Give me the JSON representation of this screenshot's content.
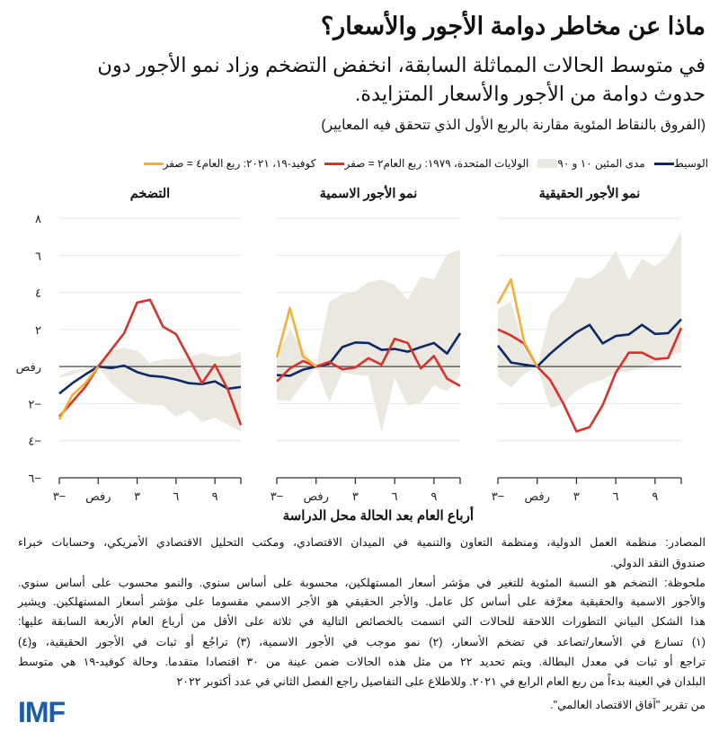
{
  "header": {
    "title": "ماذا عن مخاطر دوامة الأجور والأسعار؟",
    "subtitle_lines": [
      "في متوسط الحالات المماثلة السابقة، انخفض التضخم وزاد نمو الأجور دون",
      "حدوث دوامة من الأجور والأسعار المتزايدة."
    ],
    "units": "(الفروق بالنقاط المئوية مقارنة بالربع الأول الذي تتحقق فيه المعايير)"
  },
  "legend": [
    {
      "label": "كوفيد-١٩، ٢٠٢١: ربع العام٤ = صفر",
      "kind": "line",
      "color": "#f2b134"
    },
    {
      "label": "الولايات المتحدة، ١٩٧٩: ربع العام٢ = صفر",
      "kind": "line",
      "color": "#d8322b"
    },
    {
      "label": "مدى المئين ١٠ و ٩٠",
      "kind": "band",
      "color": "#ebe8df"
    },
    {
      "label": "الوسيط",
      "kind": "line",
      "color": "#0c2a6a"
    }
  ],
  "chart_data": {
    "type": "line",
    "x": [
      -3,
      -2,
      -1,
      0,
      1,
      2,
      3,
      4,
      5,
      6,
      7,
      8,
      9,
      10,
      11
    ],
    "xlabel": "أرباع العام بعد الحالة محل الدراسة",
    "xticks": [
      -3,
      0,
      3,
      6,
      9
    ],
    "xtick_labels": [
      "٣−",
      "صفر",
      "٣",
      "٦",
      "٩"
    ],
    "ylim": [
      -6,
      8
    ],
    "yticks": [
      8,
      6,
      4,
      2,
      0,
      -2,
      -4,
      -6
    ],
    "ytick_labels": [
      "٨",
      "٦",
      "٤",
      "٢",
      "صفر",
      "٢−",
      "٤−",
      "٦−"
    ],
    "grid": true,
    "colors": {
      "median": "#0c2a6a",
      "us1979": "#d8322b",
      "covid": "#f2b134",
      "band": "#ebe8df",
      "zero": "#444444",
      "grid": "#e6e6e6"
    },
    "panels": [
      {
        "title": "التضخم",
        "band_upper": [
          -0.5,
          -0.2,
          -0.1,
          0,
          0.9,
          1.0,
          0.85,
          0.2,
          0.4,
          0.4,
          0.5,
          0.75,
          0.55,
          0.55,
          0.8
        ],
        "band_lower": [
          -0.6,
          -0.45,
          -0.2,
          0,
          -0.9,
          -1.5,
          -1.95,
          -2.05,
          -2.1,
          -2.7,
          -2.35,
          -3.0,
          -2.75,
          -3.15,
          -3.5
        ],
        "series": [
          {
            "name": "الوسيط",
            "key": "median",
            "values": [
              -1.46,
              -0.9,
              -0.43,
              0,
              -0.08,
              0.05,
              -0.3,
              -0.5,
              -0.56,
              -0.7,
              -0.9,
              -0.95,
              -0.8,
              -1.2,
              -1.1
            ]
          },
          {
            "name": "الولايات المتحدة، ١٩٧٩: ربع العام٢ = صفر",
            "key": "us1979",
            "values": [
              -2.7,
              -1.9,
              -1.1,
              0,
              0.9,
              1.8,
              3.45,
              3.6,
              2.15,
              1.75,
              0.45,
              -0.9,
              0.1,
              -1.25,
              -3.15
            ]
          },
          {
            "name": "كوفيد-١٩، ٢٠٢١: ربع العام٤ = صفر",
            "key": "covid",
            "values": [
              -2.85,
              -1.55,
              -0.9,
              0
            ]
          }
        ]
      },
      {
        "title": "نمو الأجور الاسمية",
        "band_upper": [
          0.55,
          2.0,
          0.9,
          0,
          3.5,
          3.9,
          4.05,
          4.55,
          4.7,
          4.4,
          3.6,
          4.85,
          4.7,
          6.05,
          6.3
        ],
        "band_lower": [
          -1.8,
          -1.85,
          -0.95,
          0,
          -1.95,
          -0.3,
          -0.45,
          -0.5,
          -3.55,
          -0.6,
          -2.1,
          -1.95,
          -1.0,
          -1.35,
          -0.45
        ],
        "series": [
          {
            "name": "الوسيط",
            "key": "median",
            "values": [
              -0.46,
              -0.5,
              -0.17,
              0,
              0.15,
              1.05,
              1.3,
              1.27,
              0.9,
              0.95,
              0.8,
              1.05,
              1.27,
              0.7,
              1.8
            ]
          },
          {
            "name": "الولايات المتحدة، ١٩٧٩: ربع العام٢ = صفر",
            "key": "us1979",
            "values": [
              -0.8,
              -0.1,
              0.3,
              0,
              0.25,
              -0.15,
              -0.05,
              0.45,
              0.1,
              1.5,
              1.27,
              -0.1,
              0.57,
              -0.65,
              -1.05
            ]
          },
          {
            "name": "كوفيد-١٩، ٢٠٢١: ربع العام٤ = صفر",
            "key": "covid",
            "values": [
              0.5,
              3.15,
              0.55,
              0
            ]
          }
        ]
      },
      {
        "title": "نمو الأجور الحقيقية",
        "band_upper": [
          3.1,
          3.5,
          0.95,
          0,
          2.85,
          3.5,
          4.8,
          4.75,
          5.2,
          6.25,
          4.65,
          5.8,
          5.4,
          6.0,
          7.3
        ],
        "band_lower": [
          -0.57,
          -1.13,
          -0.4,
          0,
          -2.25,
          -2.0,
          -1.3,
          -0.9,
          -0.73,
          -0.33,
          -0.25,
          -0.1,
          0.22,
          0.54,
          0.78
        ],
        "series": [
          {
            "name": "الوسيط",
            "key": "median",
            "values": [
              1.13,
              0.22,
              0.1,
              0,
              0.7,
              1.3,
              1.85,
              2.25,
              1.25,
              1.65,
              1.73,
              2.25,
              1.76,
              1.8,
              2.55
            ]
          },
          {
            "name": "الولايات المتحدة، ١٩٧٩: ربع العام٢ = صفر",
            "key": "us1979",
            "values": [
              2.0,
              1.68,
              1.25,
              0,
              -0.73,
              -2.0,
              -3.5,
              -3.27,
              -2.08,
              -0.33,
              0.75,
              0.75,
              0.4,
              0.46,
              2.08
            ]
          },
          {
            "name": "كوفيد-١٩، ٢٠٢١: ربع العام٤ = صفر",
            "key": "covid",
            "values": [
              3.4,
              4.7,
              1.33,
              0
            ]
          }
        ]
      }
    ]
  },
  "notes": {
    "sources_lines": [
      "المصادر: منظمة العمل الدولية، ومنظمة التعاون والتنمية في الميدان الاقتصادي، ومكتب التحليل الاقتصادي الأمريكي، وحسابات خبراء",
      "صندوق النقد الدولي."
    ],
    "note_lines": [
      "ملحوظة: التضخم هو النسبة المئوية للتغير في مؤشر أسعار المستهلكين، محسوبة على أساس سنوي. والنمو محسوب على أساس سنوي.",
      "والأجور الاسمية والحقيقية معرَّفة على أساس كل عامل. والأجر الحقيقي هو الأجر الاسمي مقسوما على مؤشر أسعار المستهلكين. ويشير",
      "هذا الشكل البياني التطورات اللاحقة للحالات التي اتسمت بالخصائص التالية في ثلاثة على الأقل من أرباع العام الأربعة السابقة عليها:",
      "(١) تسارع في الأسعار/تصاعد في تضخم الأسعار، (٢) نمو موجب في الأجور الاسمية، (٣) تراجُع أو ثبات في الأجور الحقيقية، و(٤)",
      "تراجع أو ثبات في معدل البطالة. ويتم تحديد ٢٢ من مثل هذه الحالات ضمن عينة من ٣٠ اقتصادا متقدما. وحالة كوفيد-١٩ هي متوسط",
      "البلدان في العينة بدءاً من ربع العام الرابع في ٢٠٢١. وللاطلاع على التفاصيل راجع الفصل الثاني في عدد أكتوبر ٢٠٢٢",
      "من تقرير \"آفاق الاقتصاد العالمي\"."
    ]
  },
  "logo": {
    "text": "IMF",
    "color": "#1b5da8"
  }
}
